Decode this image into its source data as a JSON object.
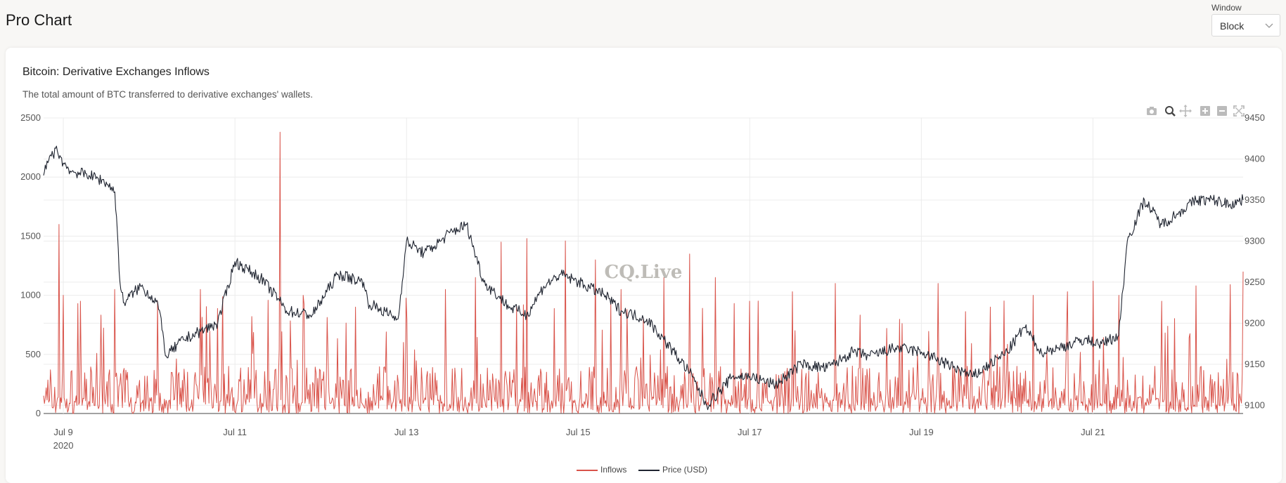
{
  "header": {
    "title": "Pro Chart",
    "window_label": "Window",
    "window_value": "Block"
  },
  "chart_card": {
    "title": "Bitcoin: Derivative Exchanges Inflows",
    "subtitle": "The total amount of BTC transferred to derivative exchanges' wallets.",
    "watermark": "CQ.Live"
  },
  "toolbar": {
    "icons": [
      "camera-icon",
      "zoom-icon",
      "pan-icon",
      "zoom-in-icon",
      "zoom-out-icon",
      "autoscale-icon"
    ]
  },
  "colors": {
    "inflows": "#d9534a",
    "price": "#1f2430",
    "grid": "#ececec",
    "axis_text": "#555555"
  },
  "chart_data": {
    "type": "line",
    "title": "Bitcoin: Derivative Exchanges Inflows",
    "subtitle": "The total amount of BTC transferred to derivative exchanges' wallets.",
    "x_axis": {
      "ticks": [
        {
          "label": "Jul 9",
          "sublabel": "2020",
          "day": 9
        },
        {
          "label": "Jul 11",
          "day": 11
        },
        {
          "label": "Jul 13",
          "day": 13
        },
        {
          "label": "Jul 15",
          "day": 15
        },
        {
          "label": "Jul 17",
          "day": 17
        },
        {
          "label": "Jul 19",
          "day": 19
        },
        {
          "label": "Jul 21",
          "day": 21
        }
      ],
      "range_days": [
        8.77,
        22.75
      ]
    },
    "y_left": {
      "ticks": [
        0,
        500,
        1000,
        1500,
        2000,
        2500
      ],
      "tick_labels": [
        "0",
        "500",
        "1000",
        "1500",
        "2000",
        "2500"
      ],
      "range": [
        0,
        2500
      ]
    },
    "y_right": {
      "ticks": [
        9100,
        9150,
        9200,
        9250,
        9300,
        9350,
        9400,
        9450
      ],
      "tick_labels": [
        "9100",
        "9150",
        "9200",
        "9250",
        "9300",
        "9350",
        "9400",
        "9450"
      ],
      "range": [
        9090,
        9450
      ]
    },
    "legend": {
      "placement": "bottom-center",
      "entries": [
        "Inflows",
        "Price (USD)"
      ]
    },
    "grid": true,
    "series": [
      {
        "name": "Inflows",
        "axis": "left",
        "style": "spiky-line",
        "days": [
          8.77,
          8.95,
          9.0,
          9.2,
          9.6,
          10.1,
          10.6,
          11.2,
          11.53,
          11.8,
          12.4,
          13.0,
          13.45,
          13.8,
          14.1,
          14.4,
          14.85,
          15.2,
          15.5,
          16.0,
          16.3,
          16.6,
          17.0,
          17.5,
          18.0,
          18.6,
          19.2,
          19.8,
          20.3,
          20.7,
          21.0,
          21.3,
          21.8,
          22.2,
          22.6,
          22.75
        ],
        "values": [
          150,
          1600,
          1000,
          950,
          1050,
          950,
          1050,
          820,
          2380,
          1000,
          900,
          800,
          1050,
          1150,
          1450,
          1480,
          1460,
          1300,
          1050,
          1150,
          1350,
          1150,
          950,
          1030,
          1100,
          720,
          1100,
          900,
          1000,
          1030,
          1120,
          1000,
          950,
          1080,
          1090,
          1200
        ],
        "baseline_range": [
          0,
          400
        ]
      },
      {
        "name": "Price (USD)",
        "axis": "right",
        "style": "line",
        "days": [
          8.77,
          8.85,
          8.93,
          9.0,
          9.1,
          9.3,
          9.5,
          9.6,
          9.62,
          9.66,
          9.7,
          9.9,
          10.1,
          10.2,
          10.4,
          10.6,
          10.8,
          11.0,
          11.3,
          11.5,
          11.6,
          11.9,
          12.2,
          12.5,
          12.55,
          12.9,
          13.0,
          13.2,
          13.4,
          13.5,
          13.7,
          13.9,
          14.0,
          14.2,
          14.4,
          14.6,
          14.8,
          15.0,
          15.3,
          15.5,
          15.8,
          16.0,
          16.3,
          16.5,
          16.8,
          17.0,
          17.3,
          17.6,
          17.9,
          18.2,
          18.4,
          18.7,
          19.0,
          19.3,
          19.6,
          19.8,
          20.0,
          20.2,
          20.4,
          20.6,
          20.9,
          21.1,
          21.3,
          21.4,
          21.6,
          21.8,
          22.0,
          22.2,
          22.4,
          22.6,
          22.75
        ],
        "values": [
          9380,
          9405,
          9410,
          9395,
          9385,
          9380,
          9372,
          9360,
          9330,
          9250,
          9225,
          9245,
          9225,
          9160,
          9180,
          9190,
          9200,
          9275,
          9255,
          9230,
          9215,
          9210,
          9260,
          9250,
          9225,
          9205,
          9300,
          9285,
          9300,
          9310,
          9320,
          9250,
          9240,
          9220,
          9210,
          9245,
          9260,
          9250,
          9235,
          9215,
          9205,
          9180,
          9140,
          9100,
          9135,
          9135,
          9125,
          9150,
          9145,
          9165,
          9160,
          9170,
          9165,
          9150,
          9135,
          9150,
          9165,
          9195,
          9165,
          9170,
          9180,
          9175,
          9185,
          9300,
          9350,
          9320,
          9335,
          9350,
          9350,
          9345,
          9350
        ]
      }
    ]
  }
}
